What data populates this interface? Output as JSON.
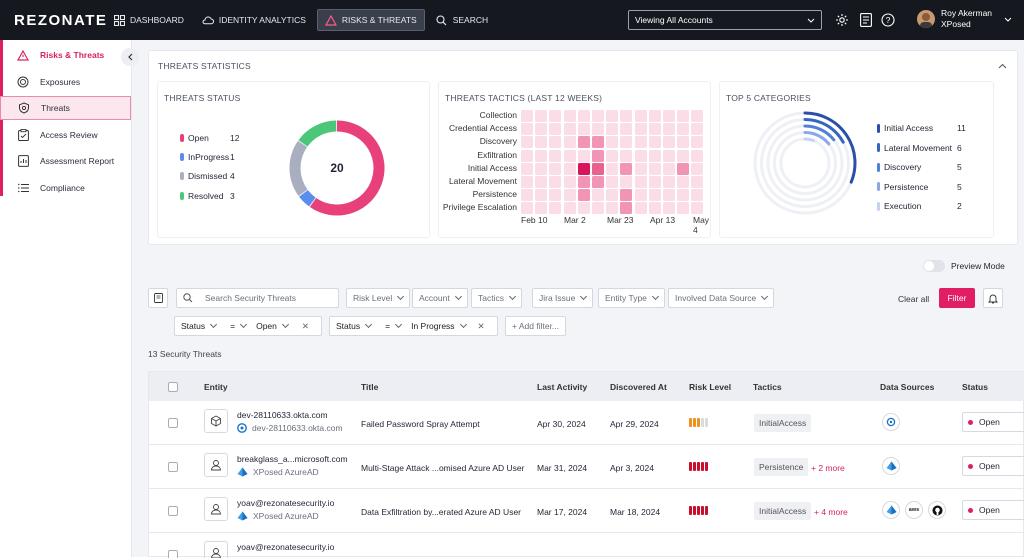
{
  "app": {
    "logo": "REZONATE"
  },
  "nav": {
    "items": [
      {
        "label": "DASHBOARD",
        "icon": "grid-icon"
      },
      {
        "label": "IDENTITY ANALYTICS",
        "icon": "cloud-icon"
      },
      {
        "label": "RISKS & THREATS",
        "icon": "warning-icon"
      },
      {
        "label": "SEARCH",
        "icon": "search-icon"
      }
    ],
    "account_select": "Viewing All Accounts",
    "user_name": "Roy Akerman",
    "user_org": "XPosed"
  },
  "sidebar": {
    "items": [
      {
        "label": "Risks & Threats",
        "icon": "warning-icon"
      },
      {
        "label": "Exposures",
        "icon": "target-icon"
      },
      {
        "label": "Threats",
        "icon": "shield-icon"
      },
      {
        "label": "Access Review",
        "icon": "clipboard-icon"
      },
      {
        "label": "Assessment Report",
        "icon": "report-icon"
      },
      {
        "label": "Compliance",
        "icon": "list-icon"
      }
    ]
  },
  "stats": {
    "title": "THREATS STATISTICS",
    "status_title": "THREATS STATUS",
    "status_total": "20",
    "status_items": [
      {
        "label": "Open",
        "value": "12",
        "color": "#e8407a"
      },
      {
        "label": "InProgress",
        "value": "1",
        "color": "#5b8def"
      },
      {
        "label": "Dismissed",
        "value": "4",
        "color": "#a9aec0"
      },
      {
        "label": "Resolved",
        "value": "3",
        "color": "#4cc77a"
      }
    ],
    "tactics_title": "THREATS TACTICS (LAST 12 WEEKS)",
    "tactics_rows": [
      "Collection",
      "Credential Access",
      "Discovery",
      "Exfiltration",
      "Initial Access",
      "Lateral Movement",
      "Persistence",
      "Privilege Escalation"
    ],
    "tactics_xlabels": [
      "Feb 10",
      "Mar 2",
      "Mar 23",
      "Apr 13",
      "May 4"
    ],
    "heat": [
      [
        0,
        0,
        0,
        0,
        0,
        0,
        0,
        0,
        0,
        0,
        0,
        0,
        0
      ],
      [
        0,
        0,
        0,
        0,
        0,
        0,
        0,
        0,
        0,
        0,
        0,
        0,
        0
      ],
      [
        0,
        0,
        0,
        0,
        2,
        2,
        0,
        0,
        0,
        0,
        0,
        0,
        0
      ],
      [
        0,
        0,
        0,
        0,
        0,
        2,
        0,
        0,
        0,
        0,
        0,
        0,
        0
      ],
      [
        0,
        0,
        0,
        0,
        4,
        3,
        0,
        2,
        0,
        0,
        0,
        2,
        0
      ],
      [
        0,
        0,
        0,
        0,
        2,
        2,
        0,
        0,
        0,
        0,
        0,
        0,
        0
      ],
      [
        0,
        0,
        0,
        0,
        2,
        0,
        0,
        2,
        0,
        0,
        0,
        0,
        0
      ],
      [
        0,
        0,
        0,
        0,
        0,
        0,
        0,
        2,
        0,
        0,
        0,
        0,
        0
      ]
    ],
    "categories_title": "TOP 5 CATEGORIES",
    "categories": [
      {
        "label": "Initial Access",
        "value": "11",
        "color": "#2a4fa8"
      },
      {
        "label": "Lateral Movement",
        "value": "6",
        "color": "#3565c2"
      },
      {
        "label": "Discovery",
        "value": "5",
        "color": "#5280d8"
      },
      {
        "label": "Persistence",
        "value": "5",
        "color": "#8aa8e6"
      },
      {
        "label": "Execution",
        "value": "2",
        "color": "#c5d3f2"
      }
    ]
  },
  "filters": {
    "preview_mode": "Preview Mode",
    "search_placeholder": "Search Security Threats",
    "dropdowns": [
      "Risk Level",
      "Account",
      "Tactics",
      "Jira Issue",
      "Entity Type",
      "Involved Data Source"
    ],
    "clear_all": "Clear all",
    "filter_button": "Filter",
    "chips": [
      {
        "field": "Status",
        "op": "=",
        "value": "Open"
      },
      {
        "field": "Status",
        "op": "=",
        "value": "In Progress"
      }
    ],
    "add_filter": "+ Add filter..."
  },
  "table": {
    "count_label": "13 Security Threats",
    "columns": [
      "Entity",
      "Title",
      "Last Activity",
      "Discovered At",
      "Risk Level",
      "Tactics",
      "Data Sources",
      "Status"
    ],
    "rows": [
      {
        "entity": "dev-28110633.okta.com",
        "sub": "dev-28110633.okta.com",
        "title": "Failed Password Spray Attempt",
        "last": "Apr 30, 2024",
        "disc": "Apr 29, 2024",
        "risk": 3,
        "tactic": "InitialAccess",
        "more": "",
        "status": "Open"
      },
      {
        "entity": "breakglass_a...microsoft.com",
        "sub": "XPosed AzureAD",
        "title": "Multi-Stage Attack ...omised Azure AD User",
        "last": "Mar 31, 2024",
        "disc": "Apr 3, 2024",
        "risk": 5,
        "tactic": "Persistence",
        "more": "+ 2 more",
        "status": "Open"
      },
      {
        "entity": "yoav@rezonatesecurity.io",
        "sub": "XPosed AzureAD",
        "title": "Data Exfiltration by...erated Azure AD User",
        "last": "Mar 17, 2024",
        "disc": "Mar 18, 2024",
        "risk": 5,
        "tactic": "InitialAccess",
        "more": "+ 4 more",
        "status": "Open"
      },
      {
        "entity": "yoav@rezonatesecurity.io",
        "sub": "",
        "title": "",
        "last": "",
        "disc": "",
        "risk": 0,
        "tactic": "",
        "more": "",
        "status": ""
      }
    ]
  }
}
